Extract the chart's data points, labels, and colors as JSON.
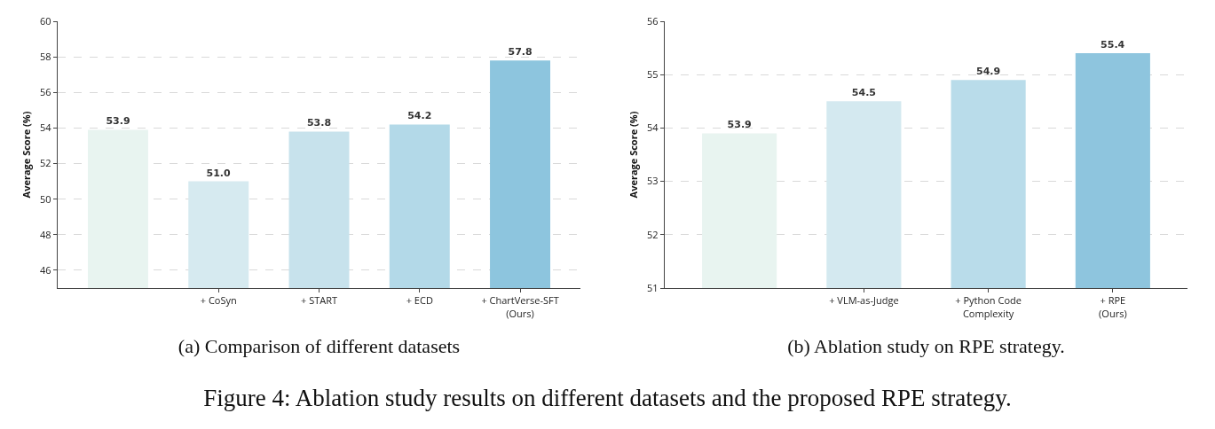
{
  "chart_data": [
    {
      "type": "bar",
      "xlabel": "(a) Comparison of different datasets",
      "ylabel": "Average Score (%)",
      "categories": [
        null,
        "+ CoSyn",
        "+ START",
        "+ ECD",
        "+ ChartVerse-SFT\n(Ours)"
      ],
      "values": [
        53.9,
        51.0,
        53.8,
        54.2,
        57.8
      ],
      "value_labels": [
        "53.9",
        "51.0",
        "53.8",
        "54.2",
        "57.8"
      ],
      "colors": [
        "#e8f4f0",
        "#d6eaf0",
        "#c7e2ec",
        "#b3d9e8",
        "#8dc5de"
      ],
      "ylim": [
        45,
        60
      ],
      "yticks": [
        46,
        48,
        50,
        52,
        54,
        56,
        58,
        60
      ],
      "grid": "y",
      "annotations": [
        "Figure 4: Ablation study results on different datasets and the proposed RPE strategy."
      ]
    },
    {
      "type": "bar",
      "xlabel": "(b) Ablation study on RPE strategy.",
      "ylabel": "Average Score (%)",
      "categories": [
        null,
        "+ VLM-as-Judge",
        "+ Python Code\nComplexity",
        "+ RPE\n(Ours)"
      ],
      "values": [
        53.9,
        54.5,
        54.9,
        55.4
      ],
      "value_labels": [
        "53.9",
        "54.5",
        "54.9",
        "55.4"
      ],
      "colors": [
        "#e8f4f0",
        "#d4e9f0",
        "#b9dcea",
        "#8ec5de"
      ],
      "ylim": [
        51,
        56
      ],
      "yticks": [
        51,
        52,
        53,
        54,
        55,
        56
      ],
      "grid": "y"
    }
  ]
}
